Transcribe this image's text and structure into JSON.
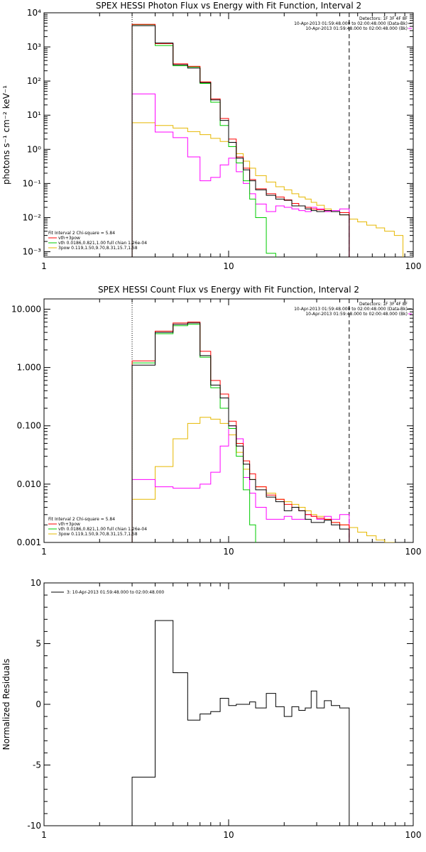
{
  "colors": {
    "black": "#000000",
    "red": "#ff0000",
    "green": "#00cc00",
    "magenta": "#ff00ff",
    "yellow": "#e6b800"
  },
  "chart_data": [
    {
      "type": "line",
      "title": "SPEX HESSI Photon Flux vs Energy with Fit Function, Interval 2",
      "ylabel": "photons s⁻¹ cm⁻² keV⁻¹",
      "xlabel": "",
      "xscale": "log",
      "yscale": "log",
      "xlim": [
        1,
        100
      ],
      "ylim": [
        0.0007,
        10000
      ],
      "xticks": [
        1,
        10,
        100
      ],
      "xtick_labels": [
        "1",
        "10",
        "100"
      ],
      "yticks": [
        0.001,
        0.01,
        0.1,
        1,
        10,
        100,
        1000,
        10000
      ],
      "ytick_labels": [
        "10⁻³",
        "10⁻²",
        "10⁻¹",
        "10⁰",
        "10¹",
        "10²",
        "10³",
        "10⁴"
      ],
      "vlines": [
        {
          "x": 3,
          "style": "dotted"
        },
        {
          "x": 45,
          "style": "dashed"
        }
      ],
      "legend_top": [
        "Detectors: 1F 3F 4F 8F",
        "10-Apr-2013 01:59:48.000 to 02:00:48.000 (Data-Bk)",
        "10-Apr-2013 01:59:48.000 to 02:00:48.000 (Bk)"
      ],
      "legend_bottom": [
        "Fit Interval 2   Chi-square = 5.84",
        "vth+3pow",
        "vth 0.0186,0.821,1.00  full chian 1.26e-04",
        "3pow 0.119,1.50,9.70,8.31,15.7,1.58"
      ],
      "bin_edges": [
        3,
        4,
        5,
        6,
        7,
        8,
        9,
        10,
        11,
        12,
        13,
        14,
        16,
        18,
        20,
        22,
        24,
        26,
        28,
        30,
        33,
        36,
        40,
        45
      ],
      "series": [
        {
          "name": "",
          "color": "black",
          "values": [
            4200,
            1300,
            300,
            240,
            90,
            28,
            7,
            1.6,
            0.55,
            0.25,
            0.12,
            0.065,
            0.045,
            0.035,
            0.032,
            0.022,
            0.022,
            0.018,
            0.016,
            0.015,
            0.016,
            0.015,
            0.012
          ]
        },
        {
          "name": "vth+3pow",
          "color": "red",
          "values": [
            4600,
            1250,
            320,
            270,
            95,
            30,
            8,
            2.0,
            0.6,
            0.28,
            0.13,
            0.07,
            0.05,
            0.04,
            0.033,
            0.026,
            0.022,
            0.02,
            0.018,
            0.017,
            0.016,
            0.015,
            0.014
          ]
        },
        {
          "name": "vth",
          "color": "green",
          "values": [
            4500,
            1100,
            280,
            260,
            85,
            24,
            5,
            1.2,
            0.4,
            0.12,
            0.035,
            0.01,
            0.0009
          ]
        },
        {
          "name": "3pow",
          "color": "yellow",
          "values": [
            6,
            5,
            4.2,
            3.3,
            2.7,
            2.1,
            1.7,
            1.2,
            0.75,
            0.45,
            0.28,
            0.17,
            0.11,
            0.08,
            0.065,
            0.05,
            0.04,
            0.035,
            0.028,
            0.023,
            0.018,
            0.015,
            0.012,
            0.009,
            0.0075,
            0.006,
            0.005,
            0.004,
            0.003
          ],
          "extra_edges": [
            45,
            50,
            56,
            63,
            70,
            79,
            88,
            100
          ]
        },
        {
          "name": "",
          "color": "magenta",
          "values": [
            42,
            3.2,
            2.2,
            0.6,
            0.12,
            0.15,
            0.35,
            0.55,
            0.22,
            0.1,
            0.05,
            0.025,
            0.015,
            0.022,
            0.02,
            0.018,
            0.016,
            0.015,
            0.02,
            0.018,
            0.015,
            0.016,
            0.018
          ]
        }
      ]
    },
    {
      "type": "line",
      "title": "SPEX HESSI Count Flux vs Energy with Fit Function, Interval 2",
      "ylabel": "",
      "xlabel": "",
      "xscale": "log",
      "yscale": "log",
      "xlim": [
        1,
        100
      ],
      "ylim": [
        0.001,
        15
      ],
      "xticks": [
        1,
        10,
        100
      ],
      "xtick_labels": [
        "1",
        "10",
        "100"
      ],
      "yticks": [
        0.001,
        0.01,
        0.1,
        1,
        10
      ],
      "ytick_labels": [
        "0.001",
        "0.010",
        "0.100",
        "1.000",
        "10.000"
      ],
      "vlines": [
        {
          "x": 3,
          "style": "dotted"
        },
        {
          "x": 45,
          "style": "dashed"
        }
      ],
      "legend_top": [
        "Detectors: 1F 3F 4F 8F",
        "10-Apr-2013 01:59:48.000 to 02:00:48.000 (Data-Bk)",
        "10-Apr-2013 01:59:48.000 to 02:00:48.000 (Bk)"
      ],
      "legend_bottom": [
        "Fit Interval 2   Chi-square = 5.84",
        "vth+3pow",
        "vth 0.0186,0.821,1.00  full chian 1.26e-04",
        "3pow 0.119,1.50,9.70,8.31,15.7,1.58"
      ],
      "bin_edges": [
        3,
        4,
        5,
        6,
        7,
        8,
        9,
        10,
        11,
        12,
        13,
        14,
        16,
        18,
        20,
        22,
        24,
        26,
        28,
        30,
        33,
        36,
        40,
        45
      ],
      "series": [
        {
          "name": "",
          "color": "black",
          "values": [
            1.1,
            4.0,
            5.5,
            5.8,
            1.6,
            0.5,
            0.3,
            0.1,
            0.045,
            0.022,
            0.012,
            0.008,
            0.006,
            0.005,
            0.0035,
            0.004,
            0.0035,
            0.0025,
            0.0022,
            0.0022,
            0.0024,
            0.002,
            0.0017
          ]
        },
        {
          "name": "vth+3pow",
          "color": "red",
          "values": [
            1.3,
            4.2,
            5.8,
            6.0,
            1.9,
            0.6,
            0.35,
            0.12,
            0.05,
            0.025,
            0.015,
            0.009,
            0.0065,
            0.0055,
            0.0045,
            0.004,
            0.0035,
            0.003,
            0.0028,
            0.0026,
            0.0025,
            0.0022,
            0.002
          ]
        },
        {
          "name": "vth",
          "color": "green",
          "values": [
            1.2,
            3.8,
            5.2,
            5.5,
            1.5,
            0.45,
            0.2,
            0.09,
            0.03,
            0.008,
            0.002,
            0.0009
          ]
        },
        {
          "name": "3pow",
          "color": "yellow",
          "values": [
            0.0055,
            0.02,
            0.06,
            0.11,
            0.14,
            0.13,
            0.11,
            0.07,
            0.035,
            0.018,
            0.012,
            0.009,
            0.007,
            0.0055,
            0.005,
            0.0045,
            0.004,
            0.0035,
            0.003,
            0.0028,
            0.0025,
            0.0022,
            0.002,
            0.0018,
            0.0015,
            0.0013,
            0.0011,
            0.001
          ],
          "extra_edges": [
            45,
            50,
            56,
            63,
            70,
            79
          ]
        },
        {
          "name": "",
          "color": "magenta",
          "values": [
            0.012,
            0.009,
            0.0085,
            0.0085,
            0.01,
            0.016,
            0.045,
            0.1,
            0.06,
            0.013,
            0.007,
            0.004,
            0.0025,
            0.0025,
            0.0028,
            0.0025,
            0.0025,
            0.003,
            0.0028,
            0.0025,
            0.0028,
            0.0025,
            0.003
          ]
        }
      ]
    },
    {
      "type": "line",
      "title": "",
      "ylabel": "Normalized Residuals",
      "xlabel": "",
      "xscale": "log",
      "yscale": "linear",
      "xlim": [
        1,
        100
      ],
      "ylim": [
        -10,
        10
      ],
      "xticks": [
        1,
        10,
        100
      ],
      "xtick_labels": [
        "1",
        "10",
        "100"
      ],
      "yticks": [
        -10,
        -5,
        0,
        5,
        10
      ],
      "ytick_labels": [
        "-10",
        "-5",
        "0",
        "5",
        "10"
      ],
      "legend_top": [
        "3: 10-Apr-2013 01:59:48.000 to 02:00:48.000"
      ],
      "bin_edges": [
        3,
        4,
        5,
        6,
        7,
        8,
        9,
        10,
        11,
        12,
        13,
        14,
        16,
        18,
        20,
        22,
        24,
        26,
        28,
        30,
        33,
        36,
        40,
        45
      ],
      "series": [
        {
          "name": "",
          "color": "black",
          "values": [
            -6,
            6.9,
            2.6,
            -1.3,
            -0.8,
            -0.6,
            0.5,
            -0.1,
            0,
            0,
            0.2,
            -0.3,
            0.9,
            -0.2,
            -1,
            -0.2,
            -0.5,
            -0.3,
            1.1,
            -0.3,
            0.3,
            -0.1,
            -0.3
          ]
        }
      ]
    }
  ]
}
